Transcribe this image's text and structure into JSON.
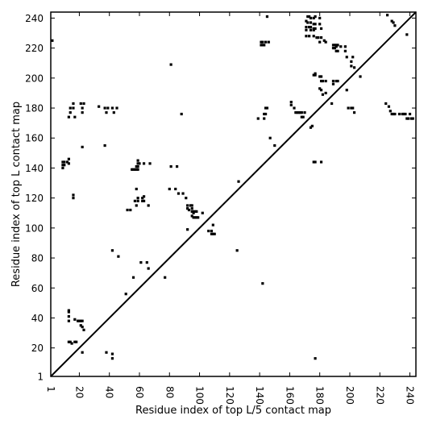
{
  "chart_data": {
    "type": "scatter",
    "title": "",
    "xlabel": "Residue index of top L/5 contact map",
    "ylabel": "Residue index of top L contact map",
    "xlim": [
      1,
      244
    ],
    "ylim": [
      1,
      244
    ],
    "xticks": [
      1,
      20,
      40,
      60,
      80,
      100,
      120,
      140,
      160,
      180,
      200,
      220,
      240
    ],
    "yticks": [
      1,
      20,
      40,
      60,
      80,
      100,
      120,
      140,
      160,
      180,
      200,
      220,
      240
    ],
    "xtick_labels": [
      "1",
      "20",
      "40",
      "60",
      "80",
      "100",
      "120",
      "140",
      "160",
      "180",
      "200",
      "220",
      "240"
    ],
    "ytick_labels": [
      "1",
      "20",
      "40",
      "60",
      "80",
      "100",
      "120",
      "140",
      "160",
      "180",
      "200",
      "220",
      "240"
    ],
    "xtick_rotation": "vertical",
    "diagonal": true,
    "grid": false,
    "legend": "none",
    "marker": "square",
    "colors": {
      "points": "#000000",
      "diagonal": "#000000",
      "axes": "#000000",
      "background": "#ffffff"
    },
    "lower_triangle_points": [
      [
        13,
        24
      ],
      [
        14,
        24
      ],
      [
        17,
        24
      ],
      [
        18,
        24
      ],
      [
        15,
        23
      ],
      [
        13,
        38
      ],
      [
        13,
        41
      ],
      [
        13,
        44
      ],
      [
        13,
        45
      ],
      [
        17,
        39
      ],
      [
        19,
        38
      ],
      [
        20,
        38
      ],
      [
        21,
        38
      ],
      [
        22,
        38
      ],
      [
        21,
        35
      ],
      [
        22,
        34
      ],
      [
        23,
        32
      ],
      [
        22,
        17
      ],
      [
        38,
        17
      ],
      [
        42,
        16
      ],
      [
        42,
        13
      ],
      [
        51,
        56
      ],
      [
        56,
        67
      ],
      [
        46,
        81
      ],
      [
        42,
        85
      ],
      [
        61,
        77
      ],
      [
        65,
        77
      ],
      [
        66,
        73
      ],
      [
        77,
        67
      ],
      [
        52,
        112
      ],
      [
        54,
        112
      ],
      [
        58,
        115
      ],
      [
        57,
        118
      ],
      [
        59,
        118
      ],
      [
        62,
        118
      ],
      [
        63,
        118
      ],
      [
        59,
        120
      ],
      [
        62,
        120
      ],
      [
        63,
        121
      ],
      [
        58,
        126
      ],
      [
        66,
        115
      ],
      [
        80,
        126
      ],
      [
        84,
        126
      ],
      [
        86,
        123
      ],
      [
        89,
        123
      ],
      [
        91,
        120
      ],
      [
        92,
        115
      ],
      [
        92,
        113
      ],
      [
        93,
        112
      ],
      [
        94,
        115
      ],
      [
        95,
        115
      ],
      [
        95,
        113
      ],
      [
        95,
        111
      ],
      [
        96,
        111
      ],
      [
        97,
        111
      ],
      [
        98,
        111
      ],
      [
        96,
        110
      ],
      [
        95,
        108
      ],
      [
        96,
        107
      ],
      [
        97,
        107
      ],
      [
        98,
        107
      ],
      [
        99,
        107
      ],
      [
        102,
        110
      ],
      [
        92,
        99
      ],
      [
        106,
        98
      ],
      [
        108,
        98
      ],
      [
        108,
        96
      ],
      [
        109,
        96
      ],
      [
        110,
        96
      ],
      [
        109,
        102
      ],
      [
        125,
        85
      ],
      [
        142,
        63
      ],
      [
        177,
        13
      ]
    ],
    "upper_triangle_points": [
      [
        2,
        225
      ],
      [
        81,
        209
      ],
      [
        88,
        176
      ],
      [
        14,
        180
      ],
      [
        14,
        177
      ],
      [
        16,
        183
      ],
      [
        16,
        180
      ],
      [
        21,
        183
      ],
      [
        23,
        183
      ],
      [
        22,
        180
      ],
      [
        22,
        177
      ],
      [
        17,
        174
      ],
      [
        13,
        174
      ],
      [
        33,
        181
      ],
      [
        37,
        180
      ],
      [
        39,
        180
      ],
      [
        42,
        180
      ],
      [
        45,
        180
      ],
      [
        38,
        177
      ],
      [
        43,
        177
      ],
      [
        37,
        155
      ],
      [
        22,
        154
      ],
      [
        13,
        146
      ],
      [
        12,
        144
      ],
      [
        13,
        143
      ],
      [
        9,
        144
      ],
      [
        10,
        144
      ],
      [
        9,
        142
      ],
      [
        10,
        142
      ],
      [
        9,
        140
      ],
      [
        16,
        120
      ],
      [
        16,
        122
      ],
      [
        55,
        139
      ],
      [
        56,
        139
      ],
      [
        57,
        139
      ],
      [
        58,
        139
      ],
      [
        59,
        139
      ],
      [
        58,
        141
      ],
      [
        59,
        141
      ],
      [
        59,
        143
      ],
      [
        60,
        143
      ],
      [
        59,
        145
      ],
      [
        63,
        143
      ],
      [
        67,
        143
      ],
      [
        81,
        141
      ],
      [
        85,
        141
      ],
      [
        126,
        131
      ],
      [
        141,
        222
      ],
      [
        142,
        222
      ],
      [
        143,
        222
      ],
      [
        141,
        224
      ],
      [
        142,
        224
      ],
      [
        144,
        224
      ],
      [
        146,
        224
      ],
      [
        145,
        241
      ],
      [
        139,
        173
      ],
      [
        143,
        173
      ],
      [
        143,
        176
      ],
      [
        144,
        176
      ],
      [
        145,
        180
      ],
      [
        144,
        180
      ],
      [
        147,
        160
      ],
      [
        150,
        155
      ],
      [
        161,
        184
      ],
      [
        161,
        182
      ],
      [
        163,
        180
      ],
      [
        164,
        177
      ],
      [
        165,
        177
      ],
      [
        166,
        177
      ],
      [
        167,
        177
      ],
      [
        168,
        177
      ],
      [
        170,
        177
      ],
      [
        168,
        174
      ],
      [
        169,
        174
      ],
      [
        172,
        241
      ],
      [
        173,
        241
      ],
      [
        174,
        240
      ],
      [
        176,
        240
      ],
      [
        177,
        241
      ],
      [
        180,
        240
      ],
      [
        171,
        238
      ],
      [
        172,
        237
      ],
      [
        174,
        237
      ],
      [
        176,
        236
      ],
      [
        177,
        236
      ],
      [
        180,
        236
      ],
      [
        171,
        234
      ],
      [
        173,
        234
      ],
      [
        174,
        234
      ],
      [
        176,
        233
      ],
      [
        177,
        233
      ],
      [
        181,
        233
      ],
      [
        171,
        232
      ],
      [
        174,
        232
      ],
      [
        176,
        232
      ],
      [
        171,
        228
      ],
      [
        173,
        228
      ],
      [
        176,
        228
      ],
      [
        178,
        227
      ],
      [
        179,
        227
      ],
      [
        181,
        227
      ],
      [
        183,
        225
      ],
      [
        180,
        224
      ],
      [
        184,
        224
      ],
      [
        176,
        202
      ],
      [
        177,
        202
      ],
      [
        177,
        203
      ],
      [
        180,
        201
      ],
      [
        181,
        201
      ],
      [
        181,
        198
      ],
      [
        182,
        198
      ],
      [
        184,
        198
      ],
      [
        180,
        193
      ],
      [
        181,
        192
      ],
      [
        184,
        190
      ],
      [
        182,
        189
      ],
      [
        175,
        168
      ],
      [
        174,
        167
      ],
      [
        176,
        144
      ],
      [
        177,
        144
      ],
      [
        181,
        144
      ],
      [
        189,
        222
      ],
      [
        190,
        222
      ],
      [
        191,
        222
      ],
      [
        192,
        222
      ],
      [
        189,
        220
      ],
      [
        190,
        220
      ],
      [
        191,
        221
      ],
      [
        194,
        221
      ],
      [
        191,
        218
      ],
      [
        192,
        218
      ],
      [
        197,
        221
      ],
      [
        197,
        218
      ],
      [
        198,
        214
      ],
      [
        202,
        214
      ],
      [
        201,
        211
      ],
      [
        201,
        208
      ],
      [
        203,
        207
      ],
      [
        189,
        198
      ],
      [
        191,
        198
      ],
      [
        192,
        198
      ],
      [
        189,
        196
      ],
      [
        188,
        183
      ],
      [
        198,
        192
      ],
      [
        199,
        180
      ],
      [
        201,
        180
      ],
      [
        202,
        180
      ],
      [
        203,
        177
      ],
      [
        207,
        201
      ],
      [
        225,
        242
      ],
      [
        228,
        238
      ],
      [
        229,
        237
      ],
      [
        230,
        235
      ],
      [
        238,
        229
      ],
      [
        224,
        183
      ],
      [
        226,
        181
      ],
      [
        227,
        178
      ],
      [
        228,
        176
      ],
      [
        229,
        176
      ],
      [
        230,
        176
      ],
      [
        233,
        176
      ],
      [
        235,
        176
      ],
      [
        236,
        176
      ],
      [
        237,
        176
      ],
      [
        238,
        173
      ],
      [
        239,
        173
      ],
      [
        240,
        176
      ],
      [
        241,
        173
      ],
      [
        242,
        173
      ]
    ]
  }
}
